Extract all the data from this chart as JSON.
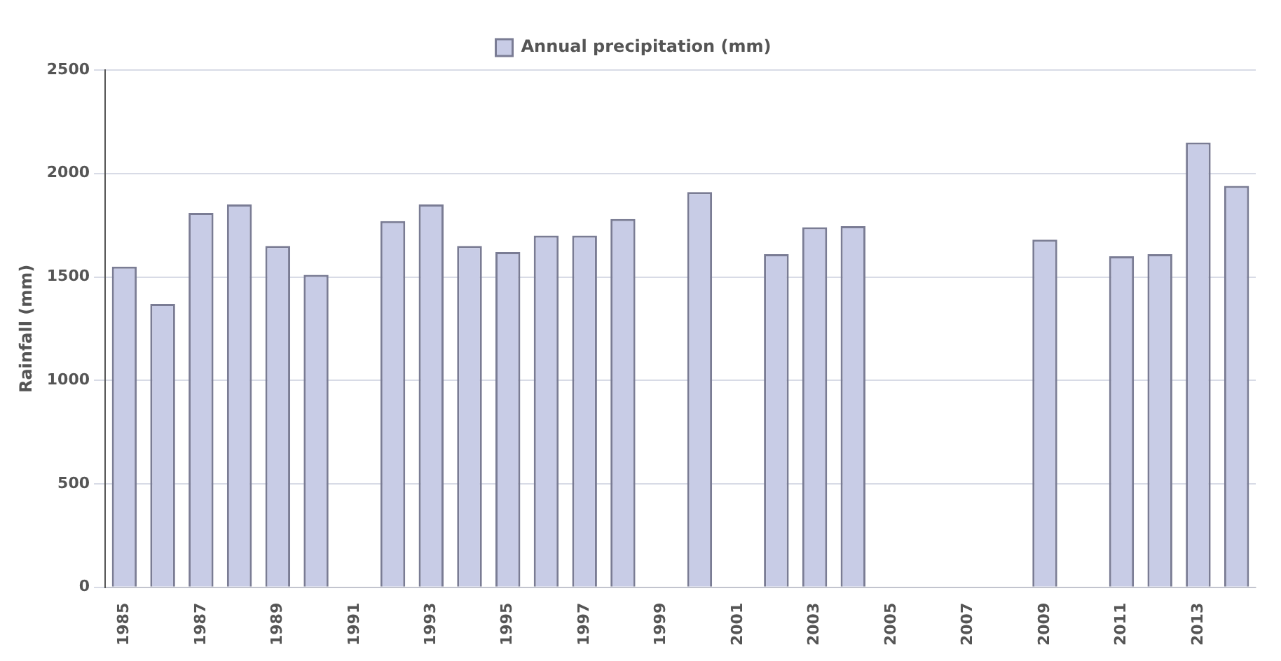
{
  "chart_data": {
    "type": "bar",
    "ylabel": "Rainfall (mm)",
    "categories": [
      "1985",
      null,
      "1987",
      null,
      "1989",
      null,
      "1991",
      null,
      "1993",
      null,
      "1995",
      null,
      "1997",
      null,
      "1999",
      null,
      "2001",
      null,
      "2003",
      null,
      "2005",
      null,
      "2007",
      null,
      "2009",
      null,
      "2011",
      null,
      "2013",
      null
    ],
    "series": [
      {
        "name": "Annual precipitation (mm)",
        "color": "#c8cce6",
        "values": [
          1550,
          1370,
          1810,
          1850,
          1650,
          1510,
          null,
          1770,
          1850,
          1650,
          1620,
          1700,
          1700,
          1780,
          null,
          1910,
          null,
          1610,
          1740,
          1745,
          null,
          null,
          null,
          null,
          1680,
          null,
          1600,
          1610,
          2150,
          1940
        ]
      }
    ],
    "ylim": [
      0,
      2500
    ],
    "yticks": [
      0,
      500,
      1000,
      1500,
      2000,
      2500
    ],
    "grid": "y",
    "legend": "top"
  }
}
